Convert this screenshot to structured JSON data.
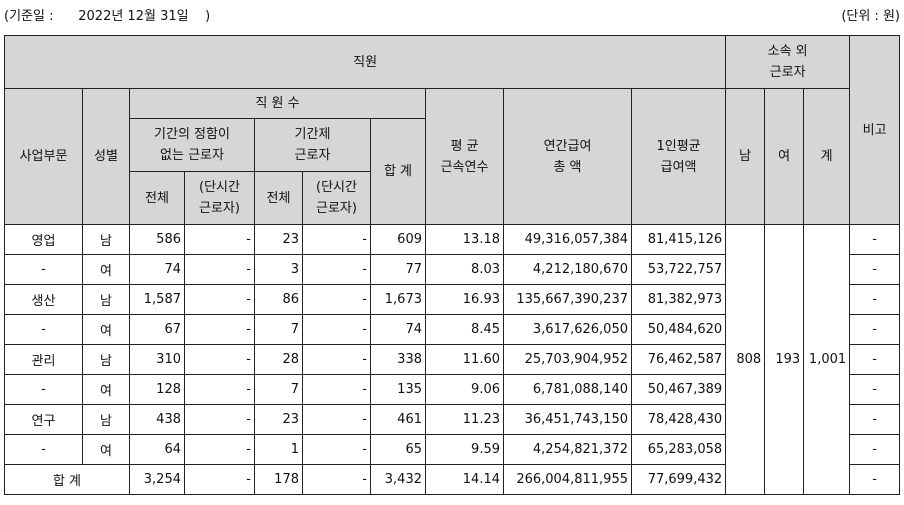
{
  "ref_date": "(기준일 :      2022년 12월 31일    )",
  "unit": "(단위 : 원)",
  "headers": {
    "employees": "직원",
    "division": "사업부문",
    "gender": "성별",
    "headcount": "직 원 수",
    "permanent_line1": "기간의 정함이",
    "permanent_line2": "없는 근로자",
    "permanent_total": "전체",
    "permanent_parttime_line1": "(단시간",
    "permanent_parttime_line2": "근로자)",
    "contract_line1": "기간제",
    "contract_line2": "근로자",
    "contract_total": "전체",
    "contract_parttime_line1": "(단시간",
    "contract_parttime_line2": "근로자)",
    "sum": "합 계",
    "tenure_line1": "평 균",
    "tenure_line2": "근속연수",
    "annual_pay_line1": "연간급여",
    "annual_pay_line2": "총 액",
    "avg_pay_line1": "1인평균",
    "avg_pay_line2": "급여액",
    "outside_line1": "소속 외",
    "outside_line2": "근로자",
    "male": "남",
    "female": "여",
    "outside_total": "계",
    "note": "비고"
  },
  "rows": [
    {
      "division": "영업",
      "gender": "남",
      "perm_total": "586",
      "perm_part": "-",
      "contract_total": "23",
      "contract_part": "-",
      "sum": "609",
      "tenure": "13.18",
      "annual_pay": "49,316,057,384",
      "avg_pay": "81,415,126",
      "note": "-"
    },
    {
      "division": "-",
      "gender": "여",
      "perm_total": "74",
      "perm_part": "-",
      "contract_total": "3",
      "contract_part": "-",
      "sum": "77",
      "tenure": "8.03",
      "annual_pay": "4,212,180,670",
      "avg_pay": "53,722,757",
      "note": "-"
    },
    {
      "division": "생산",
      "gender": "남",
      "perm_total": "1,587",
      "perm_part": "-",
      "contract_total": "86",
      "contract_part": "-",
      "sum": "1,673",
      "tenure": "16.93",
      "annual_pay": "135,667,390,237",
      "avg_pay": "81,382,973",
      "note": "-"
    },
    {
      "division": "-",
      "gender": "여",
      "perm_total": "67",
      "perm_part": "-",
      "contract_total": "7",
      "contract_part": "-",
      "sum": "74",
      "tenure": "8.45",
      "annual_pay": "3,617,626,050",
      "avg_pay": "50,484,620",
      "note": "-"
    },
    {
      "division": "관리",
      "gender": "남",
      "perm_total": "310",
      "perm_part": "-",
      "contract_total": "28",
      "contract_part": "-",
      "sum": "338",
      "tenure": "11.60",
      "annual_pay": "25,703,904,952",
      "avg_pay": "76,462,587",
      "note": "-"
    },
    {
      "division": "-",
      "gender": "여",
      "perm_total": "128",
      "perm_part": "-",
      "contract_total": "7",
      "contract_part": "-",
      "sum": "135",
      "tenure": "9.06",
      "annual_pay": "6,781,088,140",
      "avg_pay": "50,467,389",
      "note": "-"
    },
    {
      "division": "연구",
      "gender": "남",
      "perm_total": "438",
      "perm_part": "-",
      "contract_total": "23",
      "contract_part": "-",
      "sum": "461",
      "tenure": "11.23",
      "annual_pay": "36,451,743,150",
      "avg_pay": "78,428,430",
      "note": "-"
    },
    {
      "division": "-",
      "gender": "여",
      "perm_total": "64",
      "perm_part": "-",
      "contract_total": "1",
      "contract_part": "-",
      "sum": "65",
      "tenure": "9.59",
      "annual_pay": "4,254,821,372",
      "avg_pay": "65,283,058",
      "note": "-"
    }
  ],
  "total_row": {
    "label": "합 계",
    "perm_total": "3,254",
    "perm_part": "-",
    "contract_total": "178",
    "contract_part": "-",
    "sum": "3,432",
    "tenure": "14.14",
    "annual_pay": "266,004,811,955",
    "avg_pay": "77,699,432",
    "note": "-"
  },
  "outside_workers": {
    "male": "808",
    "female": "193",
    "total": "1,001"
  }
}
